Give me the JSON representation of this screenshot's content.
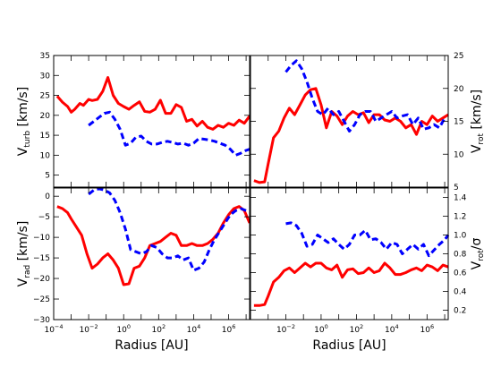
{
  "chart_data": [
    {
      "id": "top-left",
      "type": "line",
      "xlabel": "",
      "ylabel": {
        "base": "V",
        "sub": "turb",
        "unit": " [km/s]"
      },
      "xscale": "log",
      "xlim_exp": [
        -4,
        7.2
      ],
      "ylim": [
        2,
        35
      ],
      "yticks": [
        5,
        10,
        15,
        20,
        25,
        30,
        35
      ],
      "ytick_labels": [
        "5",
        "10",
        "15",
        "20",
        "25",
        "30",
        "35"
      ],
      "ytick_side": "left",
      "series": [
        {
          "style": "solid-red",
          "log10_x": [
            -3.8,
            -3.5,
            -3.2,
            -3.0,
            -2.8,
            -2.5,
            -2.3,
            -2.0,
            -1.8,
            -1.5,
            -1.2,
            -0.9,
            -0.6,
            -0.3,
            0.0,
            0.3,
            0.6,
            0.9,
            1.2,
            1.5,
            1.8,
            2.1,
            2.4,
            2.7,
            3.0,
            3.3,
            3.6,
            3.9,
            4.2,
            4.5,
            4.8,
            5.1,
            5.4,
            5.7,
            6.0,
            6.3,
            6.6,
            6.9,
            7.2
          ],
          "y": [
            24.8,
            23.3,
            22.2,
            20.8,
            21.5,
            23.0,
            22.5,
            24.0,
            23.7,
            24.0,
            26.0,
            29.5,
            25.0,
            23.0,
            22.2,
            21.5,
            22.5,
            23.4,
            21.0,
            20.8,
            21.5,
            23.8,
            20.5,
            20.5,
            22.7,
            22.0,
            18.5,
            19.0,
            17.3,
            18.5,
            17.0,
            16.5,
            17.5,
            17.0,
            18.0,
            17.5,
            18.8,
            18.0,
            19.8
          ]
        },
        {
          "style": "dashed-blue",
          "log10_x": [
            -2.0,
            -1.7,
            -1.4,
            -1.1,
            -0.8,
            -0.5,
            -0.2,
            0.1,
            0.4,
            0.7,
            1.0,
            1.3,
            1.6,
            1.9,
            2.2,
            2.5,
            2.8,
            3.1,
            3.4,
            3.7,
            4.0,
            4.3,
            4.6,
            4.9,
            5.2,
            5.5,
            5.8,
            6.1,
            6.4,
            6.7,
            7.0,
            7.2
          ],
          "y": [
            17.5,
            18.5,
            19.5,
            20.5,
            20.8,
            19.0,
            16.5,
            12.5,
            13.0,
            14.5,
            14.8,
            13.5,
            12.8,
            12.8,
            13.2,
            13.5,
            13.2,
            12.8,
            13.0,
            12.5,
            13.0,
            14.2,
            14.0,
            13.8,
            13.5,
            13.0,
            12.5,
            11.5,
            10.0,
            10.5,
            11.2,
            11.5
          ]
        }
      ]
    },
    {
      "id": "top-right",
      "type": "line",
      "xlabel": "",
      "ylabel": {
        "base": "V",
        "sub": "rot",
        "unit": " [km/s]"
      },
      "xscale": "log",
      "xlim_exp": [
        -4,
        7.2
      ],
      "ylim": [
        5,
        25
      ],
      "yticks": [
        5,
        10,
        15,
        20,
        25
      ],
      "ytick_labels": [
        "5",
        "10",
        "15",
        "20",
        "25"
      ],
      "ytick_side": "right",
      "series": [
        {
          "style": "solid-red",
          "log10_x": [
            -3.8,
            -3.5,
            -3.2,
            -3.0,
            -2.7,
            -2.4,
            -2.1,
            -1.8,
            -1.5,
            -1.2,
            -0.9,
            -0.6,
            -0.3,
            0.0,
            0.3,
            0.6,
            0.9,
            1.2,
            1.5,
            1.8,
            2.1,
            2.4,
            2.7,
            3.0,
            3.3,
            3.6,
            3.9,
            4.2,
            4.5,
            4.8,
            5.1,
            5.4,
            5.7,
            6.0,
            6.3,
            6.6,
            6.9,
            7.2
          ],
          "y": [
            6.0,
            5.7,
            5.8,
            8.5,
            12.5,
            13.5,
            15.5,
            17.0,
            16.0,
            17.5,
            19.0,
            19.8,
            20.0,
            17.5,
            14.0,
            16.5,
            15.8,
            14.5,
            15.8,
            16.5,
            16.0,
            16.3,
            14.8,
            16.0,
            16.0,
            15.2,
            15.0,
            15.5,
            15.0,
            14.0,
            14.5,
            13.0,
            15.0,
            14.5,
            15.8,
            15.0,
            15.5,
            16.0
          ]
        },
        {
          "style": "dashed-blue",
          "log10_x": [
            -2.0,
            -1.7,
            -1.4,
            -1.1,
            -0.8,
            -0.5,
            -0.2,
            0.1,
            0.4,
            0.7,
            1.0,
            1.3,
            1.6,
            1.9,
            2.2,
            2.5,
            2.8,
            3.1,
            3.4,
            3.7,
            4.0,
            4.3,
            4.6,
            4.9,
            5.2,
            5.5,
            5.8,
            6.1,
            6.4,
            6.7,
            7.0
          ],
          "y": [
            22.5,
            23.5,
            24.2,
            23.0,
            21.0,
            18.5,
            16.5,
            16.0,
            17.0,
            16.0,
            16.5,
            15.0,
            13.5,
            14.5,
            16.0,
            16.5,
            16.5,
            15.0,
            15.5,
            16.0,
            16.5,
            15.5,
            15.8,
            16.0,
            14.5,
            15.5,
            13.8,
            14.0,
            14.5,
            14.0,
            15.5
          ]
        }
      ]
    },
    {
      "id": "bottom-left",
      "type": "line",
      "xlabel": "Radius [AU]",
      "ylabel": {
        "base": "V",
        "sub": "rad",
        "unit": " [km/s]"
      },
      "xscale": "log",
      "xlim_exp": [
        -4,
        7.2
      ],
      "xticks_exp": [
        -4,
        -2,
        0,
        2,
        4,
        6
      ],
      "ylim": [
        -30,
        2
      ],
      "yticks": [
        -30,
        -25,
        -20,
        -15,
        -10,
        -5,
        0
      ],
      "ytick_labels": [
        "−30",
        "−25",
        "−20",
        "−15",
        "−10",
        "−5",
        "0"
      ],
      "ytick_side": "left",
      "series": [
        {
          "style": "solid-red",
          "log10_x": [
            -3.8,
            -3.5,
            -3.2,
            -3.0,
            -2.7,
            -2.4,
            -2.1,
            -1.8,
            -1.5,
            -1.2,
            -0.9,
            -0.6,
            -0.3,
            0.0,
            0.3,
            0.6,
            0.9,
            1.2,
            1.5,
            1.8,
            2.1,
            2.4,
            2.7,
            3.0,
            3.3,
            3.6,
            3.9,
            4.2,
            4.5,
            4.8,
            5.1,
            5.4,
            5.7,
            6.0,
            6.3,
            6.6,
            6.9,
            7.2
          ],
          "y": [
            -2.5,
            -3.0,
            -4.0,
            -5.5,
            -7.5,
            -9.5,
            -14.0,
            -17.5,
            -16.5,
            -15.0,
            -14.0,
            -15.5,
            -17.5,
            -21.5,
            -21.3,
            -17.5,
            -17.0,
            -15.0,
            -12.0,
            -11.5,
            -11.0,
            -10.0,
            -9.0,
            -9.5,
            -12.0,
            -12.0,
            -11.5,
            -12.0,
            -12.0,
            -11.5,
            -10.5,
            -9.0,
            -6.5,
            -4.5,
            -3.0,
            -2.5,
            -3.5,
            -6.5
          ]
        },
        {
          "style": "dashed-blue",
          "log10_x": [
            -2.0,
            -1.7,
            -1.4,
            -1.1,
            -0.8,
            -0.5,
            -0.2,
            0.1,
            0.4,
            0.7,
            1.0,
            1.3,
            1.6,
            1.9,
            2.2,
            2.5,
            2.8,
            3.1,
            3.4,
            3.7,
            4.0,
            4.3,
            4.6,
            4.9,
            5.2,
            5.5,
            5.8,
            6.1,
            6.4,
            6.7,
            7.0
          ],
          "y": [
            0.5,
            1.5,
            1.8,
            1.5,
            0.8,
            -1.0,
            -4.0,
            -8.0,
            -13.0,
            -13.5,
            -14.0,
            -13.5,
            -12.0,
            -12.5,
            -14.0,
            -15.0,
            -15.0,
            -14.5,
            -15.5,
            -15.0,
            -18.0,
            -17.5,
            -16.0,
            -13.0,
            -10.5,
            -8.5,
            -6.5,
            -4.5,
            -3.5,
            -3.0,
            -3.5
          ]
        }
      ]
    },
    {
      "id": "bottom-right",
      "type": "line",
      "xlabel": "Radius [AU]",
      "ylabel": {
        "base": "V",
        "sub": "rot",
        "unit": "/σ"
      },
      "xscale": "log",
      "xlim_exp": [
        -4,
        7.2
      ],
      "xticks_exp": [
        -2,
        0,
        2,
        4,
        6
      ],
      "ylim": [
        0.1,
        1.5
      ],
      "yticks": [
        0.2,
        0.4,
        0.6,
        0.8,
        1.0,
        1.2,
        1.4
      ],
      "ytick_labels": [
        "0.2",
        "0.4",
        "0.6",
        "0.8",
        "1.0",
        "1.2",
        "1.4"
      ],
      "ytick_side": "right",
      "series": [
        {
          "style": "solid-red",
          "log10_x": [
            -3.8,
            -3.5,
            -3.2,
            -3.0,
            -2.7,
            -2.4,
            -2.1,
            -1.8,
            -1.5,
            -1.2,
            -0.9,
            -0.6,
            -0.3,
            0.0,
            0.3,
            0.6,
            0.9,
            1.2,
            1.5,
            1.8,
            2.1,
            2.4,
            2.7,
            3.0,
            3.3,
            3.6,
            3.9,
            4.2,
            4.5,
            4.8,
            5.1,
            5.4,
            5.7,
            6.0,
            6.3,
            6.6,
            6.9,
            7.2
          ],
          "y": [
            0.25,
            0.25,
            0.26,
            0.35,
            0.5,
            0.55,
            0.62,
            0.65,
            0.6,
            0.65,
            0.7,
            0.66,
            0.7,
            0.7,
            0.65,
            0.63,
            0.68,
            0.55,
            0.63,
            0.64,
            0.59,
            0.6,
            0.65,
            0.6,
            0.62,
            0.7,
            0.65,
            0.58,
            0.58,
            0.6,
            0.63,
            0.65,
            0.62,
            0.68,
            0.66,
            0.62,
            0.68,
            0.66
          ]
        },
        {
          "style": "dashed-blue",
          "log10_x": [
            -2.0,
            -1.7,
            -1.4,
            -1.1,
            -0.8,
            -0.5,
            -0.2,
            0.1,
            0.4,
            0.7,
            1.0,
            1.3,
            1.6,
            1.9,
            2.2,
            2.5,
            2.8,
            3.1,
            3.4,
            3.7,
            4.0,
            4.3,
            4.6,
            4.9,
            5.2,
            5.5,
            5.8,
            6.1,
            6.4,
            6.7,
            7.0,
            7.2
          ],
          "y": [
            1.12,
            1.13,
            1.1,
            1.02,
            0.88,
            0.9,
            1.0,
            0.96,
            0.92,
            0.96,
            0.9,
            0.85,
            0.9,
            1.0,
            1.0,
            1.05,
            0.95,
            0.96,
            0.92,
            0.85,
            0.92,
            0.9,
            0.8,
            0.85,
            0.9,
            0.85,
            0.9,
            0.78,
            0.84,
            0.9,
            0.95,
            1.0
          ]
        }
      ]
    }
  ],
  "colors": {
    "solid": "#ff0000",
    "dashed": "#0000ff"
  }
}
